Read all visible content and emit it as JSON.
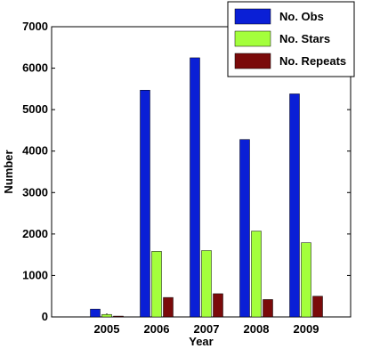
{
  "chart_data": {
    "type": "bar",
    "categories": [
      "2005",
      "2006",
      "2007",
      "2008",
      "2009"
    ],
    "series": [
      {
        "name": "No. Obs",
        "color": "#0a1fd6",
        "values": [
          190,
          5470,
          6250,
          4280,
          5380
        ]
      },
      {
        "name": "No. Stars",
        "color": "#a4ff3c",
        "values": [
          60,
          1580,
          1600,
          2070,
          1790
        ]
      },
      {
        "name": "No. Repeats",
        "color": "#7a0a0a",
        "values": [
          20,
          470,
          560,
          420,
          500
        ]
      }
    ],
    "xlabel": "Year",
    "ylabel": "Number",
    "ylim": [
      0,
      7000
    ],
    "yticks": [
      0,
      1000,
      2000,
      3000,
      4000,
      5000,
      6000,
      7000
    ],
    "legend_position": "top-right",
    "grid": false
  }
}
